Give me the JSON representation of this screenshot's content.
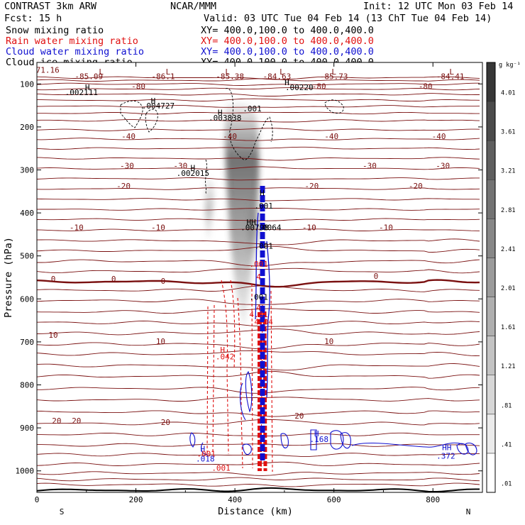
{
  "header": {
    "model": "CONTRAST  3km ARW",
    "org": "NCAR/MMM",
    "init": "Init: 12 UTC Mon 03 Feb 14",
    "fcst": "Fcst:   15 h",
    "valid": "Valid: 03 UTC Tue 04 Feb 14 (13 ChT Tue 04 Feb 14)",
    "fields": [
      {
        "name": "Snow mixing ratio",
        "xy": "XY= 400.0,100.0 to 400.0,400.0",
        "color": "#000000"
      },
      {
        "name": "Rain water mixing ratio",
        "xy": "XY= 400.0,100.0 to 400.0,400.0",
        "color": "#e01010"
      },
      {
        "name": "Cloud water mixing ratio",
        "xy": "XY= 400.0,100.0 to 400.0,400.0",
        "color": "#1010d0"
      },
      {
        "name": "Cloud ice mixing ratio",
        "xy": "XY= 400.0,100.0 to 400.0,400.0",
        "color": "#000000"
      }
    ]
  },
  "colors": {
    "temperature": "#7a1010",
    "rain": "#e01010",
    "cloud_water": "#1010d0",
    "ice": "#000000"
  },
  "chart_data": {
    "type": "contour",
    "xlabel": "Distance (km)",
    "ylabel": "Pressure (hPa)",
    "xlim": [
      0,
      900
    ],
    "ylim": [
      1050,
      50
    ],
    "xticks": [
      0,
      200,
      400,
      600,
      800
    ],
    "yticks": [
      100,
      200,
      300,
      400,
      500,
      600,
      700,
      800,
      900,
      1000
    ],
    "x_end_labels": {
      "left": "S",
      "right": "N"
    },
    "colorbar": {
      "unit": "g kg⁻¹",
      "levels": [
        ".01",
        ".41",
        ".81",
        "1.21",
        "1.61",
        "2.01",
        "2.41",
        "2.81",
        "3.21",
        "3.61",
        "4.01"
      ]
    },
    "temperature_contours": [
      {
        "p": 1045,
        "label": null
      },
      {
        "p": 1032,
        "label": null
      },
      {
        "p": 1020,
        "label": null
      },
      {
        "p": 1005,
        "label": null
      },
      {
        "p": 985,
        "label": null
      },
      {
        "p": 962,
        "label": null
      },
      {
        "p": 940,
        "label": null
      },
      {
        "p": 915,
        "label": null
      },
      {
        "p": 890,
        "label": "20"
      },
      {
        "p": 863,
        "label": null
      },
      {
        "p": 835,
        "label": null
      },
      {
        "p": 808,
        "label": null
      },
      {
        "p": 780,
        "label": null
      },
      {
        "p": 755,
        "label": null
      },
      {
        "p": 728,
        "label": null
      },
      {
        "p": 705,
        "label": "10"
      },
      {
        "p": 680,
        "label": null
      },
      {
        "p": 655,
        "label": null
      },
      {
        "p": 630,
        "label": null
      },
      {
        "p": 604,
        "label": null
      },
      {
        "p": 580,
        "label": null
      },
      {
        "p": 560,
        "label": "0"
      },
      {
        "p": 536,
        "label": null
      },
      {
        "p": 512,
        "label": null
      },
      {
        "p": 488,
        "label": null
      },
      {
        "p": 464,
        "label": null
      },
      {
        "p": 440,
        "label": "-10"
      },
      {
        "p": 415,
        "label": null
      },
      {
        "p": 392,
        "label": null
      },
      {
        "p": 368,
        "label": null
      },
      {
        "p": 344,
        "label": "-20"
      },
      {
        "p": 320,
        "label": null
      },
      {
        "p": 297,
        "label": "-30"
      },
      {
        "p": 273,
        "label": null
      },
      {
        "p": 250,
        "label": null
      },
      {
        "p": 228,
        "label": "-40"
      },
      {
        "p": 207,
        "label": null
      },
      {
        "p": 185,
        "label": null
      },
      {
        "p": 168,
        "label": null
      },
      {
        "p": 152,
        "label": null
      },
      {
        "p": 138,
        "label": null
      },
      {
        "p": 124,
        "label": null
      },
      {
        "p": 112,
        "label": "-80"
      },
      {
        "p": 100,
        "label": null
      },
      {
        "p": 92,
        "label": null
      },
      {
        "p": 85,
        "label": null
      }
    ],
    "annotations": [
      {
        "x": 17,
        "p": 74,
        "text": "-71.16",
        "color": "#7a1010"
      },
      {
        "x": 130,
        "p": 78,
        "text": "L",
        "color": "#7a1010"
      },
      {
        "x": 105,
        "p": 89,
        "text": "-85.09",
        "color": "#7a1010"
      },
      {
        "x": 265,
        "p": 78,
        "text": "L",
        "color": "#7a1010"
      },
      {
        "x": 255,
        "p": 89,
        "text": "-86.1",
        "color": "#7a1010"
      },
      {
        "x": 385,
        "p": 78,
        "text": "L",
        "color": "#7a1010"
      },
      {
        "x": 390,
        "p": 89,
        "text": "-85.38",
        "color": "#7a1010"
      },
      {
        "x": 495,
        "p": 78,
        "text": "L",
        "color": "#7a1010"
      },
      {
        "x": 485,
        "p": 89,
        "text": "-84.63",
        "color": "#7a1010"
      },
      {
        "x": 600,
        "p": 78,
        "text": "L",
        "color": "#7a1010"
      },
      {
        "x": 600,
        "p": 89,
        "text": "-85.73",
        "color": "#7a1010"
      },
      {
        "x": 838,
        "p": 78,
        "text": "L",
        "color": "#7a1010"
      },
      {
        "x": 835,
        "p": 89,
        "text": "-84.41",
        "color": "#7a1010"
      },
      {
        "x": 205,
        "p": 112,
        "text": "-80",
        "color": "#7a1010"
      },
      {
        "x": 570,
        "p": 112,
        "text": "-80",
        "color": "#7a1010"
      },
      {
        "x": 785,
        "p": 112,
        "text": "-80",
        "color": "#7a1010"
      },
      {
        "x": 102,
        "p": 114,
        "text": "H",
        "color": "#000000"
      },
      {
        "x": 90,
        "p": 126,
        "text": ".002111",
        "color": "#000000"
      },
      {
        "x": 235,
        "p": 146,
        "text": "H",
        "color": "#000000"
      },
      {
        "x": 245,
        "p": 157,
        "text": ".004727",
        "color": "#000000"
      },
      {
        "x": 505,
        "p": 103,
        "text": "H",
        "color": "#000000"
      },
      {
        "x": 530,
        "p": 114,
        "text": ".00220",
        "color": "#000000"
      },
      {
        "x": 435,
        "p": 164,
        "text": ".001",
        "color": "#000000"
      },
      {
        "x": 370,
        "p": 173,
        "text": "H",
        "color": "#000000"
      },
      {
        "x": 380,
        "p": 185,
        "text": ".003838",
        "color": "#000000"
      },
      {
        "x": 185,
        "p": 228,
        "text": "-40",
        "color": "#7a1010"
      },
      {
        "x": 390,
        "p": 228,
        "text": "-40",
        "color": "#7a1010"
      },
      {
        "x": 595,
        "p": 228,
        "text": "-40",
        "color": "#7a1010"
      },
      {
        "x": 812,
        "p": 228,
        "text": "-40",
        "color": "#7a1010"
      },
      {
        "x": 182,
        "p": 297,
        "text": "-30",
        "color": "#7a1010"
      },
      {
        "x": 290,
        "p": 297,
        "text": "-30",
        "color": "#7a1010"
      },
      {
        "x": 672,
        "p": 297,
        "text": "-30",
        "color": "#7a1010"
      },
      {
        "x": 820,
        "p": 297,
        "text": "-30",
        "color": "#7a1010"
      },
      {
        "x": 315,
        "p": 302,
        "text": "H",
        "color": "#000000"
      },
      {
        "x": 315,
        "p": 314,
        "text": ".002015",
        "color": "#000000"
      },
      {
        "x": 175,
        "p": 344,
        "text": "-20",
        "color": "#7a1010"
      },
      {
        "x": 555,
        "p": 344,
        "text": "-20",
        "color": "#7a1010"
      },
      {
        "x": 765,
        "p": 344,
        "text": "-20",
        "color": "#7a1010"
      },
      {
        "x": 455,
        "p": 360,
        "text": "H",
        "color": "#000000"
      },
      {
        "x": 458,
        "p": 390,
        "text": ".001",
        "color": "#000000"
      },
      {
        "x": 80,
        "p": 440,
        "text": "-10",
        "color": "#7a1010"
      },
      {
        "x": 245,
        "p": 440,
        "text": "-10",
        "color": "#7a1010"
      },
      {
        "x": 550,
        "p": 440,
        "text": "-10",
        "color": "#7a1010"
      },
      {
        "x": 705,
        "p": 440,
        "text": "-10",
        "color": "#7a1010"
      },
      {
        "x": 433,
        "p": 428,
        "text": "HH",
        "color": "#000000"
      },
      {
        "x": 440,
        "p": 440,
        "text": ".00798",
        "color": "#000000"
      },
      {
        "x": 470,
        "p": 440,
        "text": ".0064",
        "color": "#000000"
      },
      {
        "x": 458,
        "p": 483,
        "text": ".001",
        "color": "#000000"
      },
      {
        "x": 448,
        "p": 525,
        "text": ".001",
        "color": "#e01010"
      },
      {
        "x": 33,
        "p": 560,
        "text": "0",
        "color": "#7a1010"
      },
      {
        "x": 155,
        "p": 560,
        "text": "0",
        "color": "#7a1010"
      },
      {
        "x": 255,
        "p": 565,
        "text": "0",
        "color": "#7a1010"
      },
      {
        "x": 685,
        "p": 553,
        "text": "0",
        "color": "#7a1010"
      },
      {
        "x": 448,
        "p": 555,
        "text": "4",
        "color": "#e01010"
      },
      {
        "x": 448,
        "p": 602,
        "text": ".001",
        "color": "#000000"
      },
      {
        "x": 448,
        "p": 627,
        "text": "4",
        "color": "#e01010"
      },
      {
        "x": 448,
        "p": 642,
        "text": "4.01",
        "color": "#e01010"
      },
      {
        "x": 458,
        "p": 660,
        "text": "4.04",
        "color": "#e01010"
      },
      {
        "x": 33,
        "p": 690,
        "text": "10",
        "color": "#7a1010"
      },
      {
        "x": 250,
        "p": 705,
        "text": "10",
        "color": "#7a1010"
      },
      {
        "x": 590,
        "p": 705,
        "text": "10",
        "color": "#7a1010"
      },
      {
        "x": 375,
        "p": 725,
        "text": "H",
        "color": "#e01010"
      },
      {
        "x": 380,
        "p": 741,
        "text": ".042",
        "color": "#e01010"
      },
      {
        "x": 40,
        "p": 890,
        "text": "20",
        "color": "#7a1010"
      },
      {
        "x": 80,
        "p": 890,
        "text": "20",
        "color": "#7a1010"
      },
      {
        "x": 260,
        "p": 893,
        "text": "20",
        "color": "#7a1010"
      },
      {
        "x": 530,
        "p": 878,
        "text": "20",
        "color": "#7a1010"
      },
      {
        "x": 335,
        "p": 955,
        "text": "H",
        "color": "#1010d0"
      },
      {
        "x": 342,
        "p": 967,
        "text": ".001",
        "color": "#e01010"
      },
      {
        "x": 340,
        "p": 978,
        "text": ".018",
        "color": "#1010d0"
      },
      {
        "x": 372,
        "p": 1000,
        "text": ".001",
        "color": "#e01010"
      },
      {
        "x": 565,
        "p": 920,
        "text": "H",
        "color": "#1010d0"
      },
      {
        "x": 570,
        "p": 933,
        "text": ".168",
        "color": "#1010d0"
      },
      {
        "x": 828,
        "p": 952,
        "text": "HH",
        "color": "#1010d0"
      },
      {
        "x": 826,
        "p": 972,
        "text": ".372",
        "color": "#1010d0"
      }
    ]
  }
}
